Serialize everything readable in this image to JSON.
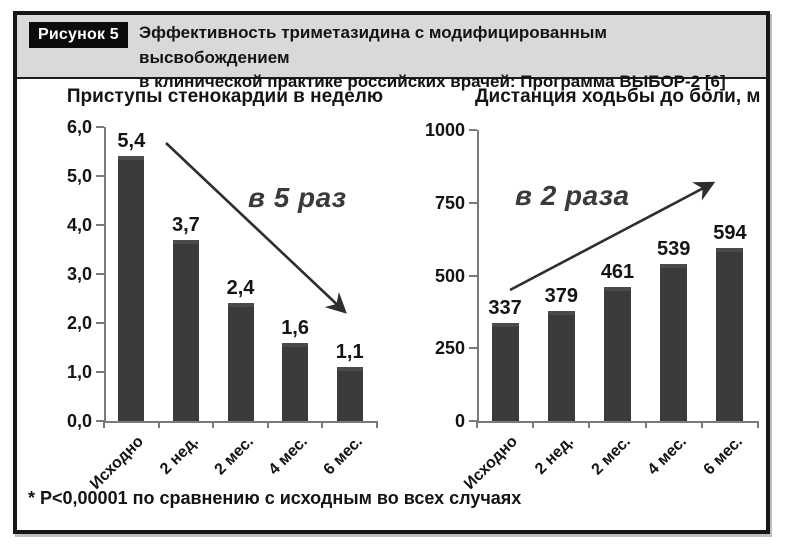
{
  "figure": {
    "label": "Рисунок 5",
    "title_line1": "Эффективность триметазидина с модифицированным высвобождением",
    "title_line2": "в клинической практике российских врачей: Программа ВЫБОР-2 [6]",
    "footnote": "* P<0,00001 по сравнению с исходным во всех случаях"
  },
  "chart_data": [
    {
      "type": "bar",
      "title": "Приступы стенокардии в неделю",
      "categories": [
        "Исходно",
        "2 нед.",
        "2 мес.",
        "4 мес.",
        "6 мес."
      ],
      "values": [
        5.4,
        3.7,
        2.4,
        1.6,
        1.1
      ],
      "value_labels": [
        "5,4",
        "3,7",
        "2,4",
        "1,6",
        "1,1"
      ],
      "ytick_labels": [
        "0,0",
        "1,0",
        "2,0",
        "3,0",
        "4,0",
        "5,0",
        "6,0"
      ],
      "ylim": [
        0,
        6
      ],
      "grid": false,
      "legend": "none",
      "annotation": "в 5 раз",
      "trend": "down"
    },
    {
      "type": "bar",
      "title": "Дистанция ходьбы до боли, м",
      "categories": [
        "Исходно",
        "2 нед.",
        "2 мес.",
        "4 мес.",
        "6 мес."
      ],
      "values": [
        337,
        379,
        461,
        539,
        594
      ],
      "value_labels": [
        "337",
        "379",
        "461",
        "539",
        "594"
      ],
      "ytick_labels": [
        "0",
        "250",
        "500",
        "750",
        "1000"
      ],
      "ylim": [
        0,
        1000
      ],
      "grid": false,
      "legend": "none",
      "annotation": "в 2 раза",
      "trend": "up"
    }
  ],
  "colors": {
    "header_bg": "#d9d9d9",
    "frame_border": "#161616",
    "bar": "#3b3b3e",
    "axis": "#7a7a7a",
    "arrow": "#2e2e2e",
    "text": "#141414"
  }
}
